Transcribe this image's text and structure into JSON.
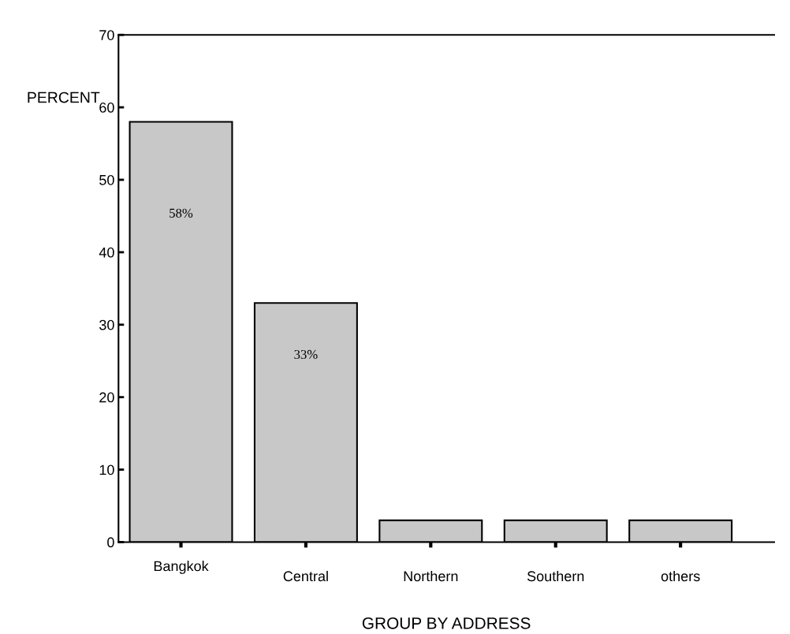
{
  "chart_data": {
    "type": "bar",
    "xlabel": "GROUP BY ADDRESS",
    "ylabel": "PERCENT",
    "categories": [
      "Bangkok",
      "Central",
      "Northern",
      "Southern",
      "others"
    ],
    "values": [
      58,
      33,
      3,
      3,
      3
    ],
    "value_labels": [
      "58%",
      "33%",
      null,
      null,
      null
    ],
    "color": "#c8c8c8",
    "ylim": [
      0,
      70
    ],
    "yticks": [
      0,
      10,
      20,
      30,
      40,
      50,
      60,
      70
    ],
    "grid": false
  }
}
